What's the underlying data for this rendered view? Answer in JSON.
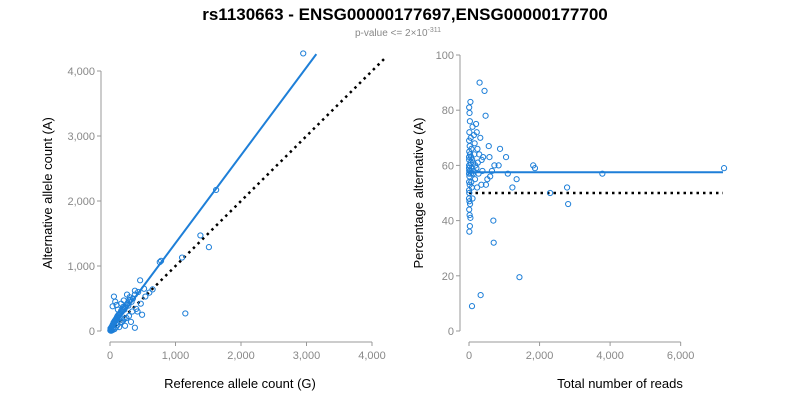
{
  "title": "rs1130663 - ENSG00000177697,ENSG00000177700",
  "subtitle": {
    "prefix": "p-value <= 2",
    "times": "×",
    "base": "10",
    "exponent": "-311"
  },
  "colors": {
    "points": "#1e7fd8",
    "fit_line": "#1e7fd8",
    "reference_line": "#000000",
    "axis": "#999999",
    "tick_text": "#888888"
  },
  "chart_data": [
    {
      "type": "scatter",
      "xlabel": "Reference allele count (G)",
      "ylabel": "Alternative allele count (A)",
      "xlim": [
        0,
        4000
      ],
      "ylim": [
        0,
        4000
      ],
      "x_ticks": [
        0,
        1000,
        2000,
        3000,
        4000
      ],
      "x_tick_labels": [
        "0",
        "1,000",
        "2,000",
        "3,000",
        "4,000"
      ],
      "y_ticks": [
        0,
        1000,
        2000,
        3000,
        4000
      ],
      "y_tick_labels": [
        "0",
        "1,000",
        "2,000",
        "3,000",
        "4,000"
      ],
      "grid": false,
      "points": [
        [
          2950,
          4270
        ],
        [
          1620,
          2170
        ],
        [
          1380,
          1470
        ],
        [
          1510,
          1290
        ],
        [
          1100,
          1130
        ],
        [
          780,
          1080
        ],
        [
          760,
          1060
        ],
        [
          1150,
          270
        ],
        [
          460,
          780
        ],
        [
          430,
          600
        ],
        [
          520,
          650
        ],
        [
          380,
          560
        ],
        [
          350,
          500
        ],
        [
          330,
          450
        ],
        [
          300,
          520
        ],
        [
          280,
          390
        ],
        [
          250,
          400
        ],
        [
          220,
          330
        ],
        [
          200,
          370
        ],
        [
          180,
          300
        ],
        [
          150,
          270
        ],
        [
          130,
          250
        ],
        [
          110,
          200
        ],
        [
          90,
          180
        ],
        [
          70,
          150
        ],
        [
          60,
          120
        ],
        [
          50,
          110
        ],
        [
          40,
          90
        ],
        [
          30,
          70
        ],
        [
          20,
          50
        ],
        [
          15,
          30
        ],
        [
          10,
          20
        ],
        [
          8,
          40
        ],
        [
          25,
          60
        ],
        [
          35,
          80
        ],
        [
          45,
          100
        ],
        [
          55,
          130
        ],
        [
          65,
          140
        ],
        [
          75,
          160
        ],
        [
          85,
          170
        ],
        [
          95,
          190
        ],
        [
          105,
          210
        ],
        [
          115,
          230
        ],
        [
          125,
          240
        ],
        [
          140,
          260
        ],
        [
          160,
          280
        ],
        [
          170,
          310
        ],
        [
          190,
          320
        ],
        [
          210,
          350
        ],
        [
          230,
          360
        ],
        [
          240,
          380
        ],
        [
          260,
          410
        ],
        [
          270,
          430
        ],
        [
          290,
          470
        ],
        [
          310,
          480
        ],
        [
          60,
          530
        ],
        [
          80,
          450
        ],
        [
          40,
          380
        ],
        [
          100,
          400
        ],
        [
          120,
          330
        ],
        [
          170,
          420
        ],
        [
          210,
          470
        ],
        [
          260,
          560
        ],
        [
          380,
          620
        ],
        [
          420,
          300
        ],
        [
          490,
          250
        ],
        [
          230,
          80
        ],
        [
          320,
          140
        ],
        [
          380,
          50
        ],
        [
          140,
          60
        ],
        [
          30,
          10
        ],
        [
          50,
          20
        ],
        [
          12,
          5
        ],
        [
          5,
          10
        ],
        [
          20,
          5
        ],
        [
          70,
          30
        ],
        [
          90,
          60
        ],
        [
          110,
          90
        ],
        [
          160,
          130
        ],
        [
          200,
          160
        ],
        [
          250,
          200
        ],
        [
          290,
          230
        ],
        [
          340,
          300
        ],
        [
          400,
          340
        ],
        [
          470,
          420
        ],
        [
          540,
          530
        ],
        [
          600,
          590
        ],
        [
          650,
          640
        ],
        [
          220,
          190
        ],
        [
          180,
          140
        ]
      ],
      "series": [
        {
          "kind": "fit",
          "values": [
            [
              0,
              0
            ],
            [
              3150,
              4260
            ]
          ]
        },
        {
          "kind": "reference",
          "values": [
            [
              0,
              0
            ],
            [
              4200,
              4200
            ]
          ]
        }
      ]
    },
    {
      "type": "scatter",
      "xlabel": "Total number of reads",
      "ylabel": "Percentage alternative (A)",
      "xlim": [
        0,
        7200
      ],
      "ylim": [
        0,
        100
      ],
      "x_ticks": [
        0,
        2000,
        4000,
        6000
      ],
      "x_tick_labels": [
        "0",
        "2,000",
        "4,000",
        "6,000"
      ],
      "y_ticks": [
        0,
        20,
        40,
        60,
        80,
        100
      ],
      "y_tick_labels": [
        "0",
        "20",
        "40",
        "60",
        "80",
        "100"
      ],
      "grid": false,
      "points": [
        [
          7230,
          59
        ],
        [
          3780,
          57
        ],
        [
          2810,
          46
        ],
        [
          2780,
          52
        ],
        [
          2300,
          50
        ],
        [
          1870,
          59
        ],
        [
          1820,
          60
        ],
        [
          1430,
          19.5
        ],
        [
          1230,
          52
        ],
        [
          1350,
          55
        ],
        [
          1100,
          57
        ],
        [
          1050,
          63
        ],
        [
          880,
          66
        ],
        [
          840,
          60
        ],
        [
          700,
          32
        ],
        [
          690,
          40
        ],
        [
          720,
          60
        ],
        [
          650,
          58
        ],
        [
          600,
          56
        ],
        [
          580,
          63
        ],
        [
          560,
          67
        ],
        [
          520,
          55
        ],
        [
          480,
          53
        ],
        [
          470,
          78
        ],
        [
          440,
          87
        ],
        [
          400,
          63
        ],
        [
          380,
          58
        ],
        [
          360,
          62
        ],
        [
          350,
          53
        ],
        [
          330,
          13
        ],
        [
          320,
          70
        ],
        [
          300,
          90
        ],
        [
          290,
          64
        ],
        [
          270,
          57
        ],
        [
          250,
          61
        ],
        [
          240,
          66
        ],
        [
          230,
          52
        ],
        [
          220,
          72
        ],
        [
          210,
          59
        ],
        [
          200,
          75
        ],
        [
          180,
          60
        ],
        [
          170,
          55
        ],
        [
          160,
          68
        ],
        [
          150,
          64
        ],
        [
          140,
          71
        ],
        [
          130,
          58
        ],
        [
          120,
          61
        ],
        [
          110,
          57
        ],
        [
          100,
          74
        ],
        [
          100,
          48
        ],
        [
          90,
          62
        ],
        [
          85,
          9
        ],
        [
          80,
          52
        ],
        [
          75,
          59
        ],
        [
          70,
          66
        ],
        [
          65,
          54
        ],
        [
          60,
          63
        ],
        [
          55,
          57
        ],
        [
          50,
          70
        ],
        [
          45,
          61
        ],
        [
          40,
          83
        ],
        [
          40,
          41
        ],
        [
          35,
          58
        ],
        [
          30,
          46
        ],
        [
          30,
          64
        ],
        [
          25,
          38
        ],
        [
          25,
          76
        ],
        [
          20,
          53
        ],
        [
          20,
          67
        ],
        [
          18,
          42
        ],
        [
          15,
          60
        ],
        [
          15,
          79
        ],
        [
          12,
          47
        ],
        [
          12,
          56
        ],
        [
          10,
          36
        ],
        [
          10,
          72
        ],
        [
          8,
          50
        ],
        [
          8,
          65
        ],
        [
          6,
          44
        ],
        [
          6,
          58
        ],
        [
          5,
          62
        ],
        [
          5,
          81
        ],
        [
          4,
          54
        ],
        [
          4,
          69
        ],
        [
          3,
          51
        ],
        [
          3,
          60
        ],
        [
          2,
          57
        ],
        [
          2,
          63
        ],
        [
          1,
          59
        ],
        [
          1,
          48
        ]
      ],
      "series": [
        {
          "kind": "fit",
          "values": [
            [
              0,
              57.5
            ],
            [
              7200,
              57.5
            ]
          ]
        },
        {
          "kind": "reference",
          "values": [
            [
              0,
              50
            ],
            [
              7200,
              50
            ]
          ]
        }
      ]
    }
  ]
}
